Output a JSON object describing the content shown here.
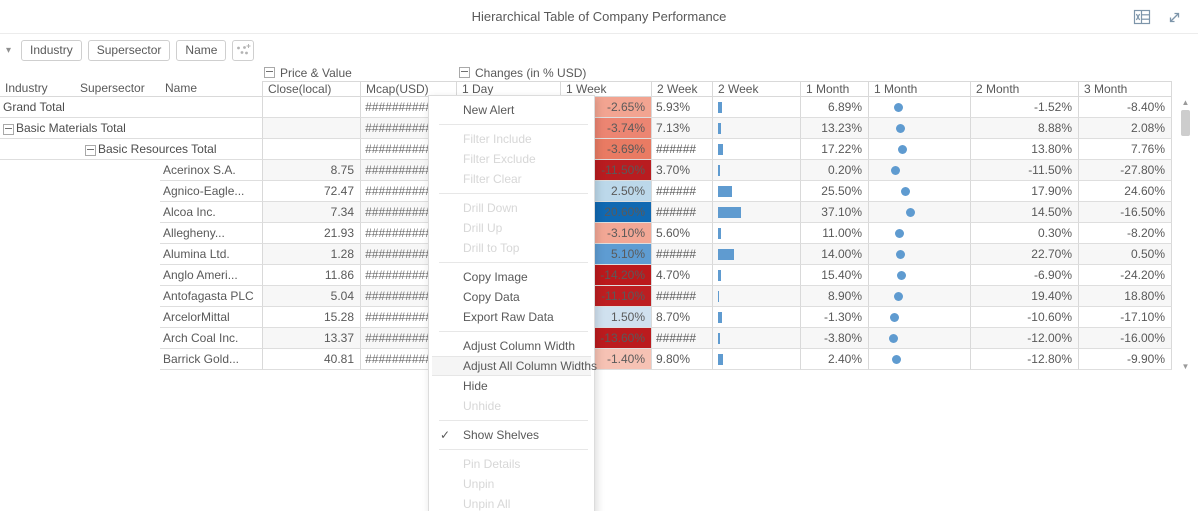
{
  "header": {
    "title": "Hierarchical Table of Company Performance",
    "icons": [
      {
        "name": "excel-export-icon"
      },
      {
        "name": "expand-icon"
      }
    ]
  },
  "shelf": {
    "chips": [
      "Industry",
      "Supersector",
      "Name"
    ],
    "collapse_icon": "chevron-down-icon",
    "add_icon": "add-visual-icon"
  },
  "table": {
    "group_headers": [
      "Price & Value",
      "Changes (in % USD)"
    ],
    "columns": [
      "Industry",
      "Supersector",
      "Name",
      "Close(local)",
      "Mcap(USD)",
      "1 Day",
      "1 Week",
      "2 Week",
      "2 Week",
      "1 Month",
      "1 Month",
      "2 Month",
      "3 Month"
    ],
    "rows": [
      {
        "name": "Grand Total",
        "level": 0,
        "expander": false,
        "close": "",
        "mcap": "##########",
        "w1": "-2.65%",
        "w1_color": "#f2a491",
        "w2": "5.93%",
        "bar": 4,
        "m1": "6.89%",
        "m2": "-1.52%",
        "m3": "-8.40%"
      },
      {
        "name": "Basic Materials Total",
        "level": 0,
        "expander": true,
        "close": "",
        "mcap": "##########",
        "w1": "-3.74%",
        "w1_color": "#ec8572",
        "w2": "7.13%",
        "bar": 3,
        "m1": "13.23%",
        "m2": "8.88%",
        "m3": "2.08%"
      },
      {
        "name": "Basic Resources Total",
        "level": 1,
        "expander": true,
        "close": "",
        "mcap": "##########",
        "w1": "-3.69%",
        "w1_color": "#e97b63",
        "w2": "######",
        "bar": 5,
        "m1": "17.22%",
        "m2": "13.80%",
        "m3": "7.76%"
      },
      {
        "name": "Acerinox S.A.",
        "level": 2,
        "expander": false,
        "close": "8.75",
        "mcap": "##########",
        "w1": "-11.50%",
        "w1_color": "#b91c20",
        "w2": "3.70%",
        "bar": 2,
        "m1": "0.20%",
        "m2": "-11.50%",
        "m3": "-27.80%"
      },
      {
        "name": "Agnico-Eagle...",
        "level": 2,
        "expander": false,
        "close": "72.47",
        "mcap": "##########",
        "w1": "2.50%",
        "w1_color": "#bcd8ea",
        "w2": "######",
        "bar": 14,
        "m1": "25.50%",
        "m2": "17.90%",
        "m3": "24.60%"
      },
      {
        "name": "Alcoa Inc.",
        "level": 2,
        "expander": false,
        "close": "7.34",
        "mcap": "##########",
        "w1": "20.60%",
        "w1_color": "#1169b2",
        "w2": "######",
        "bar": 23,
        "m1": "37.10%",
        "m2": "14.50%",
        "m3": "-16.50%"
      },
      {
        "name": "Allegheny...",
        "level": 2,
        "expander": false,
        "close": "21.93",
        "mcap": "##########",
        "w1": "-3.10%",
        "w1_color": "#f2a795",
        "w2": "5.60%",
        "bar": 3,
        "m1": "11.00%",
        "m2": "0.30%",
        "m3": "-8.20%"
      },
      {
        "name": "Alumina Ltd.",
        "level": 2,
        "expander": false,
        "close": "1.28",
        "mcap": "##########",
        "w1": "5.10%",
        "w1_color": "#5e9cd2",
        "w2": "######",
        "bar": 16,
        "m1": "14.00%",
        "m2": "22.70%",
        "m3": "0.50%"
      },
      {
        "name": "Anglo Ameri...",
        "level": 2,
        "expander": false,
        "close": "11.86",
        "mcap": "##########",
        "w1": "-14.20%",
        "w1_color": "#bb191c",
        "w2": "4.70%",
        "bar": 3,
        "m1": "15.40%",
        "m2": "-6.90%",
        "m3": "-24.20%"
      },
      {
        "name": "Antofagasta PLC",
        "level": 2,
        "expander": false,
        "close": "5.04",
        "mcap": "##########",
        "w1": "-11.10%",
        "w1_color": "#bd1e21",
        "w2": "######",
        "bar": 1,
        "m1": "8.90%",
        "m2": "19.40%",
        "m3": "18.80%"
      },
      {
        "name": "ArcelorMittal",
        "level": 2,
        "expander": false,
        "close": "15.28",
        "mcap": "##########",
        "w1": "1.50%",
        "w1_color": "#d0e1ef",
        "w2": "8.70%",
        "bar": 4,
        "m1": "-1.30%",
        "m2": "-10.60%",
        "m3": "-17.10%"
      },
      {
        "name": "Arch Coal Inc.",
        "level": 2,
        "expander": false,
        "close": "13.37",
        "mcap": "##########",
        "w1": "-13.60%",
        "w1_color": "#bb1b1e",
        "w2": "######",
        "bar": 2,
        "m1": "-3.80%",
        "m2": "-12.00%",
        "m3": "-16.00%"
      },
      {
        "name": "Barrick Gold...",
        "level": 2,
        "expander": false,
        "close": "40.81",
        "mcap": "##########",
        "w1": "-1.40%",
        "w1_color": "#f6c2b4",
        "w2": "9.80%",
        "bar": 5,
        "m1": "2.40%",
        "m2": "-12.80%",
        "m3": "-9.90%"
      }
    ]
  },
  "context_menu": {
    "items": [
      {
        "label": "New Alert",
        "enabled": true
      },
      {
        "sep": true
      },
      {
        "label": "Filter Include",
        "enabled": false
      },
      {
        "label": "Filter Exclude",
        "enabled": false
      },
      {
        "label": "Filter Clear",
        "enabled": false
      },
      {
        "sep": true
      },
      {
        "label": "Drill Down",
        "enabled": false
      },
      {
        "label": "Drill Up",
        "enabled": false
      },
      {
        "label": "Drill to Top",
        "enabled": false
      },
      {
        "sep": true
      },
      {
        "label": "Copy Image",
        "enabled": true
      },
      {
        "label": "Copy Data",
        "enabled": true
      },
      {
        "label": "Export Raw Data",
        "enabled": true
      },
      {
        "sep": true
      },
      {
        "label": "Adjust Column Width",
        "enabled": true
      },
      {
        "label": "Adjust All Column Widths",
        "enabled": true,
        "hover": true
      },
      {
        "label": "Hide",
        "enabled": true
      },
      {
        "label": "Unhide",
        "enabled": false
      },
      {
        "sep": true
      },
      {
        "label": "Show Shelves",
        "enabled": true,
        "checked": true
      },
      {
        "sep": true
      },
      {
        "label": "Pin Details",
        "enabled": false
      },
      {
        "label": "Unpin",
        "enabled": false
      },
      {
        "label": "Unpin All",
        "enabled": false
      }
    ]
  },
  "colors": {
    "accent_blue": "#5f9bd0",
    "positive_blue_dark": "#1169b2",
    "negative_red_dark": "#b91c20",
    "grid_border": "#d9d9d9",
    "text": "#595959",
    "menu_hover": "#f5f5f5"
  }
}
